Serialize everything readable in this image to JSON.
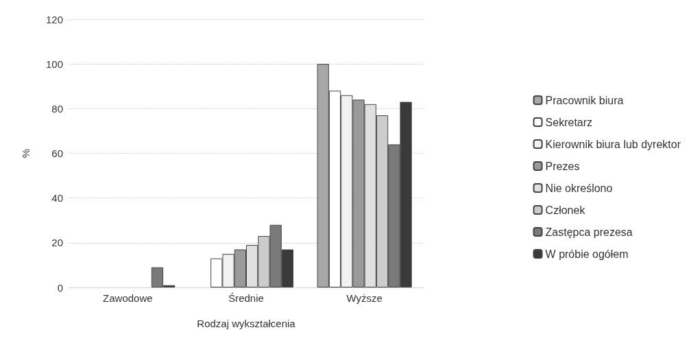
{
  "chart_data": {
    "type": "bar",
    "xlabel": "Rodzaj wykształcenia",
    "ylabel": "%",
    "categories": [
      "Zawodowe",
      "Średnie",
      "Wyższe"
    ],
    "series": [
      {
        "name": "Pracownik biura",
        "color": "#a8a8a8",
        "values": [
          0,
          0,
          100
        ]
      },
      {
        "name": "Sekretarz",
        "color": "#ffffff",
        "values": [
          0,
          13,
          88
        ]
      },
      {
        "name": "Kierownik biura lub dyrektor",
        "color": "#f2f2f2",
        "values": [
          0,
          15,
          86
        ]
      },
      {
        "name": "Prezes",
        "color": "#9a9a9a",
        "values": [
          0,
          17,
          84
        ]
      },
      {
        "name": "Nie określono",
        "color": "#e0e0e0",
        "values": [
          0,
          19,
          82
        ]
      },
      {
        "name": "Członek",
        "color": "#cccccc",
        "values": [
          0,
          23,
          77
        ]
      },
      {
        "name": "Zastępca prezesa",
        "color": "#7a7a7a",
        "values": [
          9,
          28,
          64
        ]
      },
      {
        "name": "W próbie ogółem",
        "color": "#3a3a3a",
        "values": [
          1,
          17,
          83
        ]
      }
    ],
    "ylim": [
      0,
      120
    ],
    "yticks": [
      0,
      20,
      40,
      60,
      80,
      100,
      120
    ],
    "grid": "y",
    "legend": "right"
  }
}
